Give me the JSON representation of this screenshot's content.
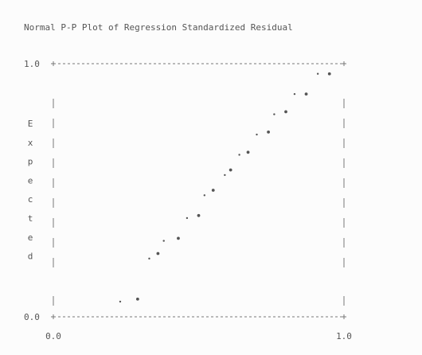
{
  "chart_data": {
    "type": "scatter",
    "title": "Normal P-P Plot of Regression Standardized Residual",
    "xlabel": "",
    "ylabel": "Expected",
    "xlim": [
      0,
      1
    ],
    "ylim": [
      0,
      1
    ],
    "x_ticks": [
      "0.0",
      "1.0"
    ],
    "y_ticks": [
      "1.0",
      "0.0"
    ],
    "grid": false,
    "colors": {
      "border": "#777777",
      "marker": "#555555",
      "text": "#555555"
    },
    "series": [
      {
        "x": [
          0.23,
          0.29,
          0.33,
          0.36,
          0.38,
          0.43,
          0.46,
          0.5,
          0.52,
          0.55,
          0.59,
          0.61,
          0.64,
          0.67,
          0.7,
          0.74,
          0.76,
          0.8,
          0.83,
          0.87,
          0.91,
          0.95
        ],
        "y": [
          0.06,
          0.07,
          0.23,
          0.25,
          0.3,
          0.31,
          0.39,
          0.4,
          0.48,
          0.5,
          0.56,
          0.58,
          0.64,
          0.65,
          0.72,
          0.73,
          0.8,
          0.81,
          0.88,
          0.88,
          0.96,
          0.96
        ]
      }
    ]
  }
}
